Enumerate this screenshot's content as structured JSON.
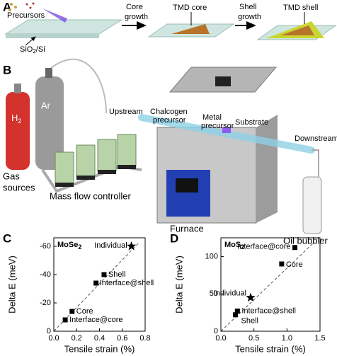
{
  "panel_a": {
    "label": "A",
    "precursors": "Precursors",
    "substrate": [
      "SiO",
      "2",
      "/Si"
    ],
    "step1": [
      "Core",
      "growth"
    ],
    "core": "TMD core",
    "step2": [
      "Shell",
      "growth"
    ],
    "shell": "TMD shell"
  },
  "panel_b": {
    "label": "B",
    "h2": [
      "H",
      "2"
    ],
    "ar": "Ar",
    "gas_sources": [
      "Gas",
      "sources"
    ],
    "mfc": "Mass flow controller",
    "upstream": "Upstream",
    "chalcogen": [
      "Chalcogen",
      "precursor"
    ],
    "metal": [
      "Metal",
      "precursor"
    ],
    "substrate": "Substrate",
    "downstream": "Downstream",
    "furnace": "Furnace",
    "bubbler": "Oil bubbler"
  },
  "chart_data": [
    {
      "type": "scatter",
      "panel": "C",
      "title": [
        "MoSe",
        "2"
      ],
      "x_label": "Tensile strain (%)",
      "y_label": "Delta E (meV)",
      "x": [
        0.68,
        0.44,
        0.37,
        0.16,
        0.1
      ],
      "series": [
        {
          "color": "#000000",
          "values": [
            -60,
            -40,
            -34,
            -14,
            -8
          ]
        }
      ],
      "annotations": [
        "Individual",
        "Shell",
        "Interface@shell",
        "Core",
        "Interface@core"
      ],
      "markers": [
        "star",
        "square",
        "square",
        "square",
        "square"
      ],
      "xlim": [
        0,
        0.8
      ],
      "xticks": [
        {
          "value": 0,
          "label": "0.0"
        },
        0.2,
        0.4,
        0.6,
        0.8
      ],
      "ylim": [
        0,
        -66
      ],
      "yticks": [
        0,
        -20,
        -40,
        -60
      ]
    },
    {
      "type": "scatter",
      "panel": "D",
      "title": [
        "MoS",
        "2"
      ],
      "x_label": "Tensile strain (%)",
      "y_label": "Delta E (meV)",
      "x": [
        1.12,
        0.92,
        0.45,
        0.25,
        0.22
      ],
      "series": [
        {
          "color": "#000000",
          "values": [
            112,
            90,
            45,
            27,
            22
          ]
        }
      ],
      "annotations": [
        "Interface@core",
        "Core",
        "Individual",
        "Interface@shell",
        "Shell"
      ],
      "markers": [
        "square",
        "square",
        "star",
        "square",
        "square"
      ],
      "xlim": [
        0,
        1.5
      ],
      "xticks": [
        {
          "value": 0,
          "label": "0.0"
        },
        0.5,
        {
          "value": 1,
          "label": "1.0"
        },
        1.5
      ],
      "ylim": [
        0,
        125
      ],
      "yticks": [
        0,
        50,
        100
      ]
    }
  ]
}
